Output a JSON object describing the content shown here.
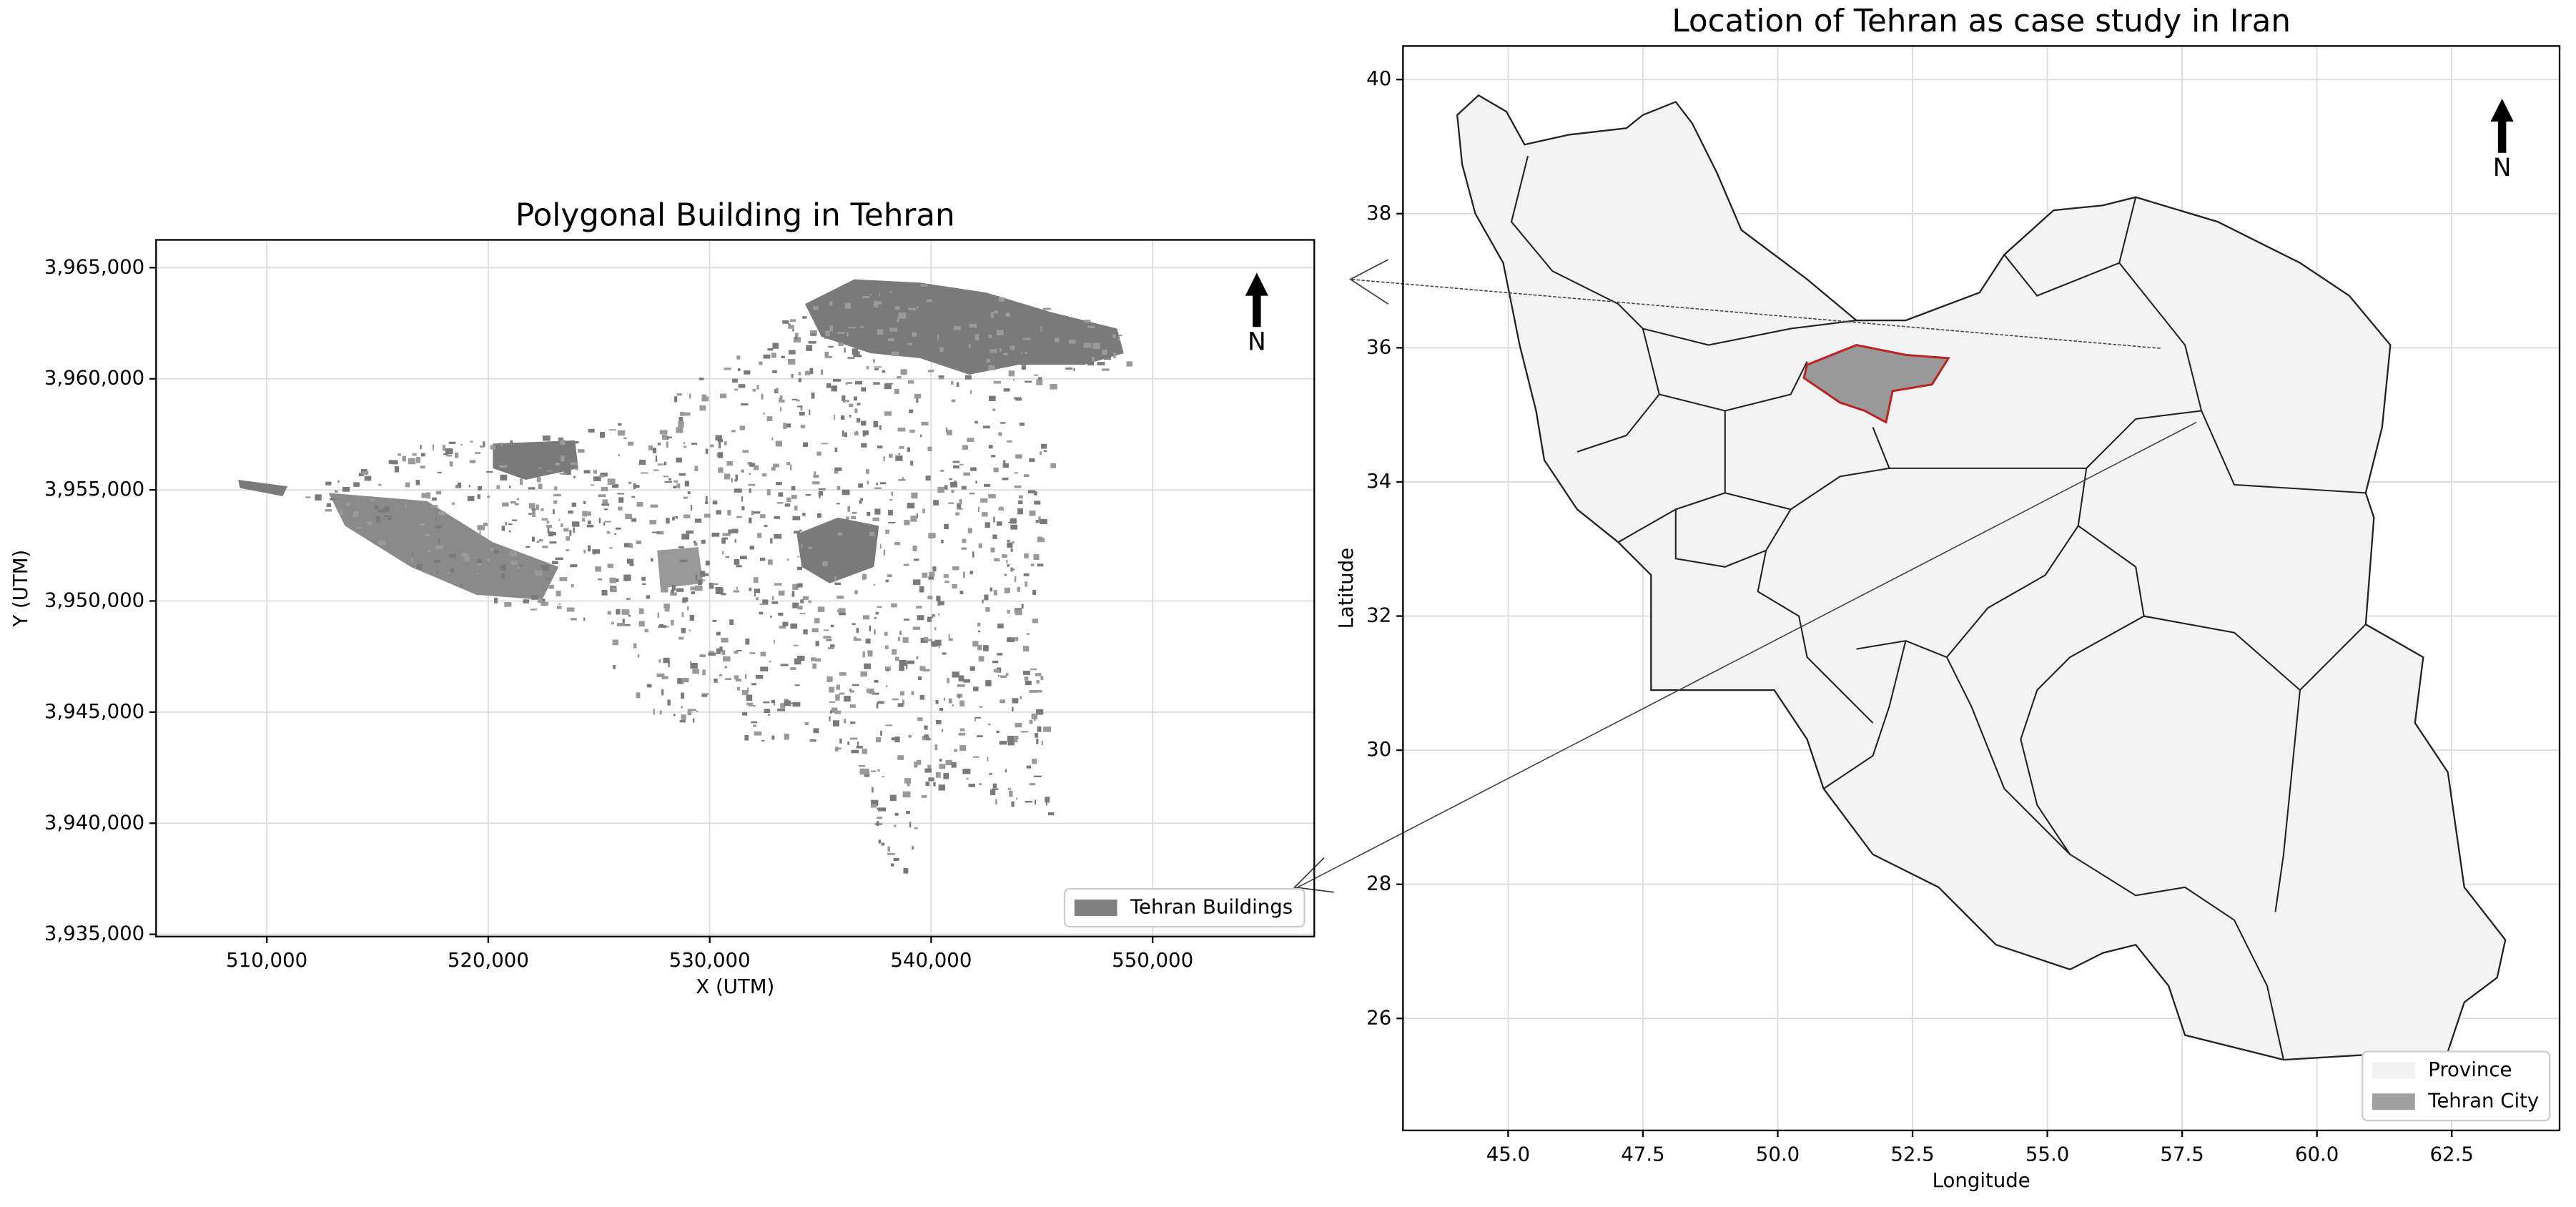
{
  "panels": [
    {
      "title": "Polygonal Building in Tehran",
      "xlabel": "X (UTM)",
      "ylabel": "Y (UTM)",
      "xlim": [
        505000,
        557300
      ],
      "ylim": [
        3934900,
        3966250
      ],
      "xticks": [
        {
          "value": 510000,
          "label": "510,000"
        },
        {
          "value": 520000,
          "label": "520,000"
        },
        {
          "value": 530000,
          "label": "530,000"
        },
        {
          "value": 540000,
          "label": "540,000"
        },
        {
          "value": 550000,
          "label": "550,000"
        }
      ],
      "yticks": [
        {
          "value": 3935000,
          "label": "3,935,000"
        },
        {
          "value": 3940000,
          "label": "3,940,000"
        },
        {
          "value": 3945000,
          "label": "3,945,000"
        },
        {
          "value": 3950000,
          "label": "3,950,000"
        },
        {
          "value": 3955000,
          "label": "3,955,000"
        },
        {
          "value": 3960000,
          "label": "3,960,000"
        },
        {
          "value": 3965000,
          "label": "3,965,000"
        }
      ],
      "grid": true,
      "north": "N",
      "legend": [
        {
          "label": "Tehran Buildings",
          "color": "#808080"
        }
      ]
    },
    {
      "title": "Location of Tehran as case study in Iran",
      "xlabel": "Longitude",
      "ylabel": "Latitude",
      "xlim": [
        43.05,
        64.5
      ],
      "ylim": [
        24.33,
        40.5
      ],
      "xticks": [
        {
          "value": 45,
          "label": "45.0"
        },
        47.5,
        {
          "value": 50,
          "label": "50.0"
        },
        52.5,
        {
          "value": 55,
          "label": "55.0"
        },
        57.5,
        {
          "value": 60,
          "label": "60.0"
        },
        62.5
      ],
      "yticks": [
        26,
        28,
        30,
        32,
        34,
        36,
        38,
        40
      ],
      "grid": true,
      "north": "N",
      "legend": [
        {
          "label": "Province",
          "color": "#f2f2f2"
        },
        {
          "label": "Tehran City",
          "color": "#a0a0a0"
        }
      ]
    }
  ]
}
